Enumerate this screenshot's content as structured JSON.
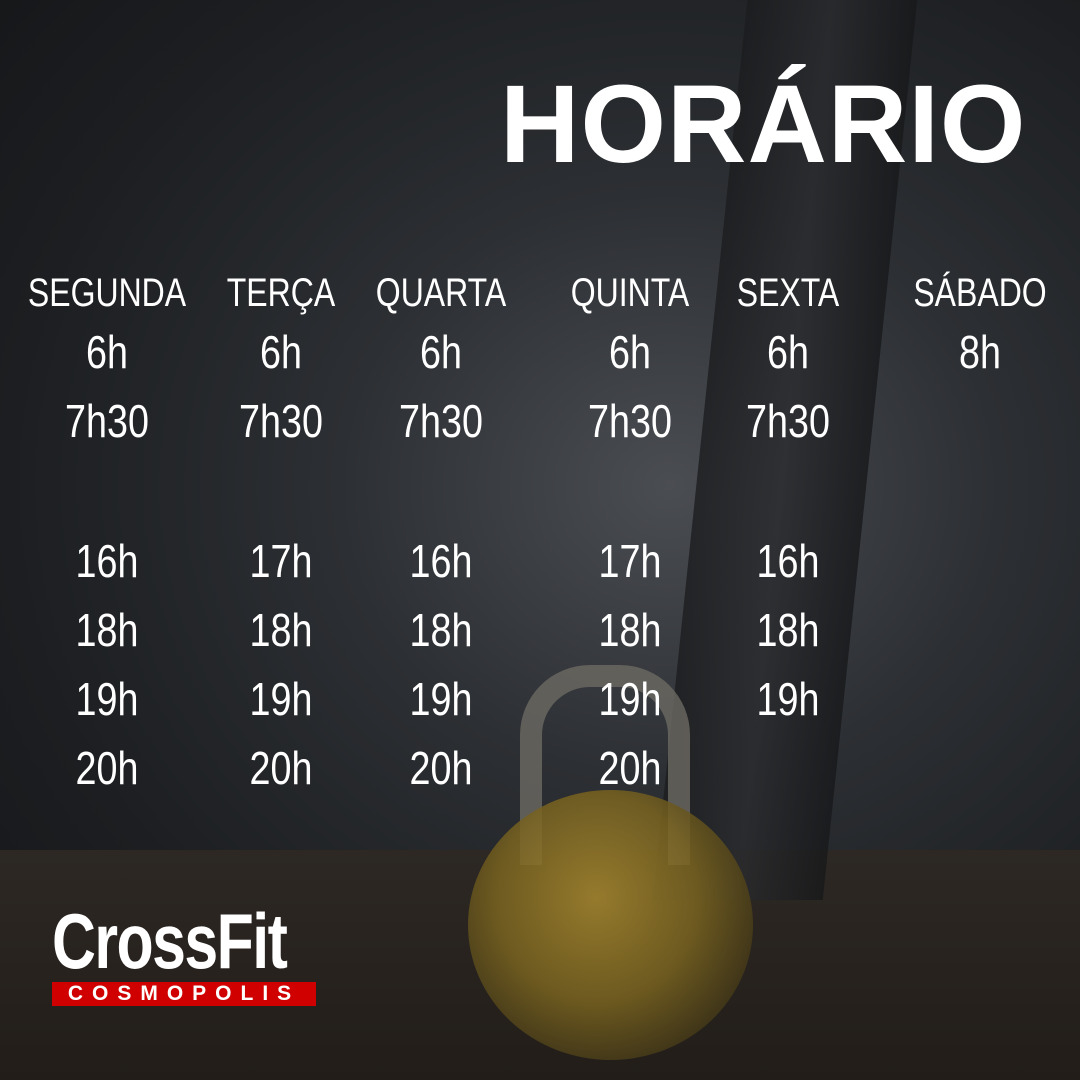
{
  "title": "HORÁRIO",
  "days": [
    {
      "label": "SEGUNDA",
      "morning": [
        "6h",
        "7h30"
      ],
      "afternoon": [
        "16h",
        "18h",
        "19h",
        "20h"
      ]
    },
    {
      "label": "TERÇA",
      "morning": [
        "6h",
        "7h30"
      ],
      "afternoon": [
        "17h",
        "18h",
        "19h",
        "20h"
      ]
    },
    {
      "label": "QUARTA",
      "morning": [
        "6h",
        "7h30"
      ],
      "afternoon": [
        "16h",
        "18h",
        "19h",
        "20h"
      ]
    },
    {
      "label": "QUINTA",
      "morning": [
        "6h",
        "7h30"
      ],
      "afternoon": [
        "17h",
        "18h",
        "19h",
        "20h"
      ]
    },
    {
      "label": "SEXTA",
      "morning": [
        "6h",
        "7h30"
      ],
      "afternoon": [
        "16h",
        "18h",
        "19h"
      ]
    },
    {
      "label": "SÁBADO",
      "morning": [
        "8h"
      ],
      "afternoon": []
    }
  ],
  "logo": {
    "main": "CrossFit",
    "sub": "COSMOPOLIS",
    "accent": "#d00000"
  }
}
